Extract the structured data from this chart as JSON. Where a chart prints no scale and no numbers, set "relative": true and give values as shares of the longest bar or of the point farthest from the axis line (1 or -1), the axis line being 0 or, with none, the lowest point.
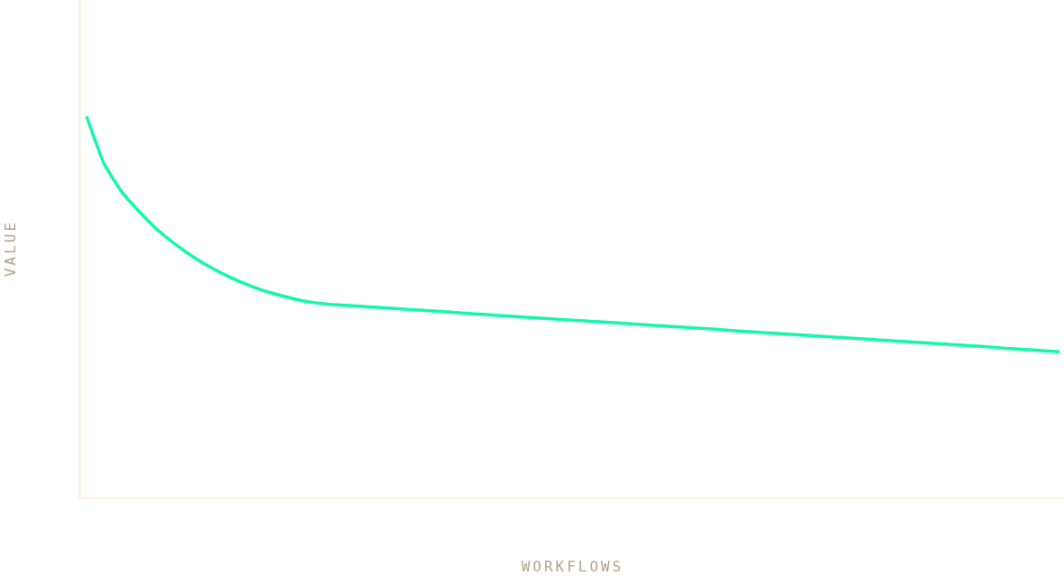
{
  "chart_data": {
    "type": "line",
    "relative": true,
    "xlabel": "WORKFLOWS",
    "ylabel": "VALUE",
    "categories": [
      null,
      null,
      null,
      null,
      null,
      null,
      null,
      null,
      null,
      null,
      null,
      null,
      null,
      null,
      null,
      null,
      null,
      null,
      null,
      null,
      null,
      null,
      null,
      null,
      null,
      null,
      null,
      null,
      null,
      null,
      null,
      null,
      null,
      null,
      null,
      null,
      null,
      null,
      null,
      null,
      null,
      null,
      null,
      null,
      null,
      null,
      null,
      null,
      null,
      null,
      null,
      null,
      null,
      null,
      null
    ],
    "series": [
      {
        "color": "#12f7a9",
        "values": [
          1.0,
          0.873,
          0.799,
          0.746,
          0.699,
          0.661,
          0.628,
          0.6,
          0.576,
          0.556,
          0.539,
          0.526,
          0.515,
          0.508,
          0.504,
          0.501,
          0.498,
          0.495,
          0.492,
          0.489,
          0.486,
          0.482,
          0.479,
          0.476,
          0.473,
          0.47,
          0.467,
          0.464,
          0.461,
          0.458,
          0.455,
          0.452,
          0.449,
          0.446,
          0.443,
          0.44,
          0.436,
          0.433,
          0.43,
          0.427,
          0.424,
          0.421,
          0.418,
          0.415,
          0.412,
          0.409,
          0.406,
          0.403,
          0.4,
          0.397,
          0.394,
          0.39,
          0.387,
          0.384,
          0.381
        ]
      }
    ],
    "tick_labels": false,
    "marker": "none",
    "line_style": "solid"
  }
}
